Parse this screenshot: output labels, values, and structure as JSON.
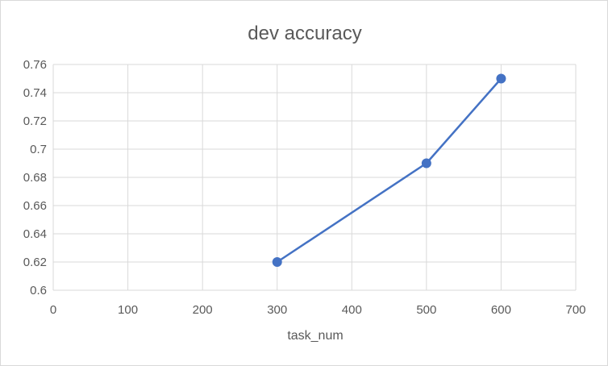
{
  "chart_data": {
    "type": "scatter",
    "title": "dev accuracy",
    "xlabel": "task_num",
    "ylabel": "",
    "xlim": [
      0,
      700
    ],
    "ylim": [
      0.6,
      0.76
    ],
    "x_ticks": [
      "0",
      "100",
      "200",
      "300",
      "400",
      "500",
      "600",
      "700"
    ],
    "y_ticks": [
      "0.6",
      "0.62",
      "0.64",
      "0.66",
      "0.68",
      "0.7",
      "0.72",
      "0.74",
      "0.76"
    ],
    "grid": true,
    "legend": "none",
    "series": [
      {
        "x": [
          300,
          500,
          600
        ],
        "y": [
          0.62,
          0.69,
          0.75
        ],
        "color": "#4472c4",
        "style": "lines-and-markers"
      }
    ]
  }
}
